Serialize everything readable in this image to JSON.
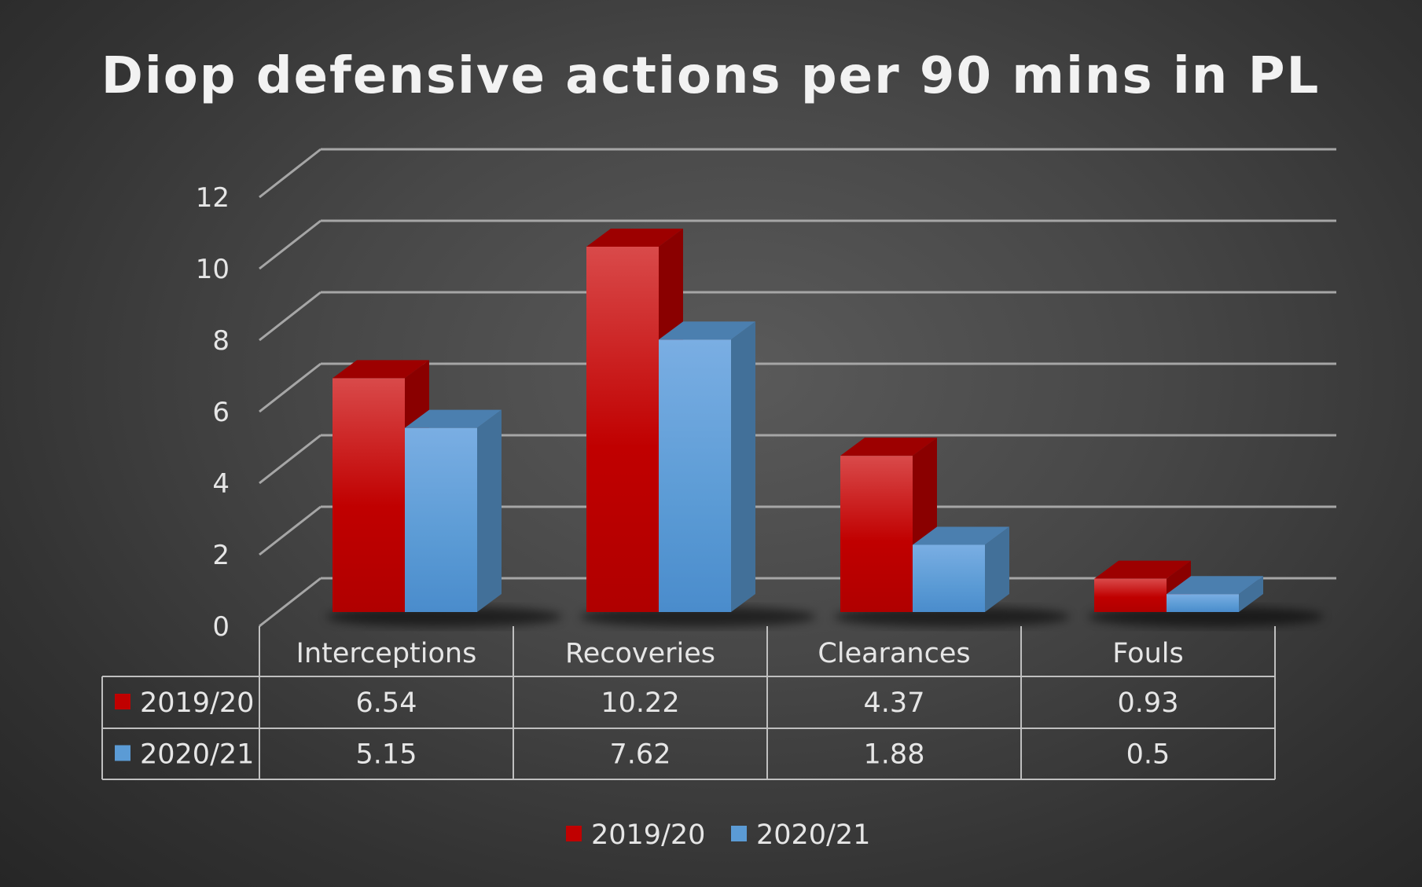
{
  "chart_data": {
    "type": "bar",
    "title": "Diop defensive actions per 90 mins in PL",
    "categories": [
      "Interceptions",
      "Recoveries",
      "Clearances",
      "Fouls"
    ],
    "series": [
      {
        "name": "2019/20",
        "values": [
          6.54,
          10.22,
          4.37,
          0.93
        ],
        "labels": [
          "6.54",
          "10.22",
          "4.37",
          "0.93"
        ],
        "color": "#c00000"
      },
      {
        "name": "2020/21",
        "values": [
          5.15,
          7.62,
          1.88,
          0.5
        ],
        "labels": [
          "5.15",
          "7.62",
          "1.88",
          "0.5"
        ],
        "color": "#5b9bd5"
      }
    ],
    "yticks": [
      "0",
      "2",
      "4",
      "6",
      "8",
      "10",
      "12"
    ],
    "ylim": [
      0,
      13
    ],
    "grid": true,
    "style": "3d-clustered-column",
    "data_table": true,
    "legend_position": "bottom"
  }
}
